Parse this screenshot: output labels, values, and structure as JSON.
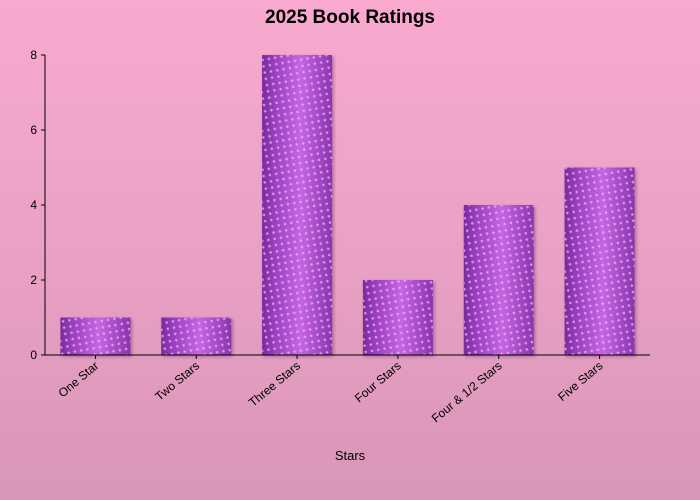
{
  "chart_data": {
    "type": "bar",
    "title": "2025 Book Ratings",
    "xlabel": "Stars",
    "ylabel": "",
    "categories": [
      "One Star",
      "Two Stars",
      "Three Stars",
      "Four Stars",
      "Four & 1/2 Stars",
      "Five Stars"
    ],
    "values": [
      1,
      1,
      8,
      2,
      4,
      5
    ],
    "ylim": [
      0,
      8
    ],
    "yticks": [
      "0",
      "2",
      "4",
      "6",
      "8"
    ],
    "grid": false,
    "legend": "none",
    "bar_color": "#9b3fc0",
    "bar_color_light": "#c765e3",
    "bar_color_dark": "#7a2a9c"
  }
}
